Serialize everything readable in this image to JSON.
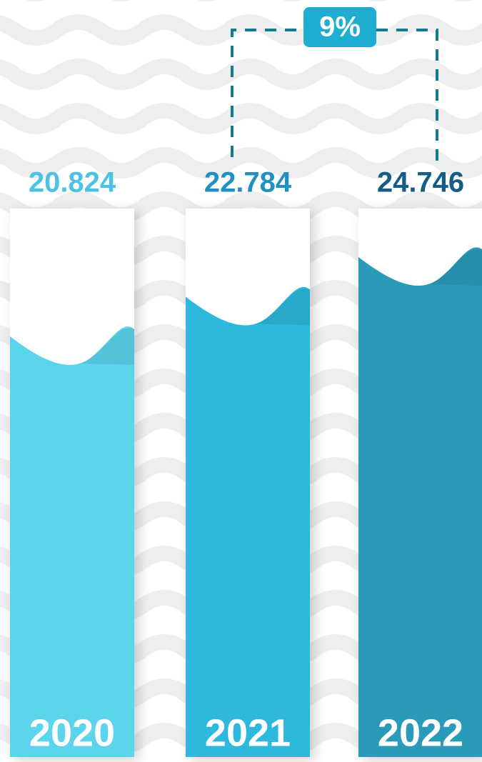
{
  "chart_data": {
    "type": "bar",
    "categories": [
      "2020",
      "2021",
      "2022"
    ],
    "values": [
      20.824,
      22.784,
      24.746
    ],
    "colors": [
      "#5bd4ec",
      "#2db8dc",
      "#2a9ab9"
    ],
    "label_colors": [
      "#4cc3e2",
      "#1f90c2",
      "#155d84"
    ],
    "annotation": "9%",
    "annotation_color": "#1faed1"
  }
}
